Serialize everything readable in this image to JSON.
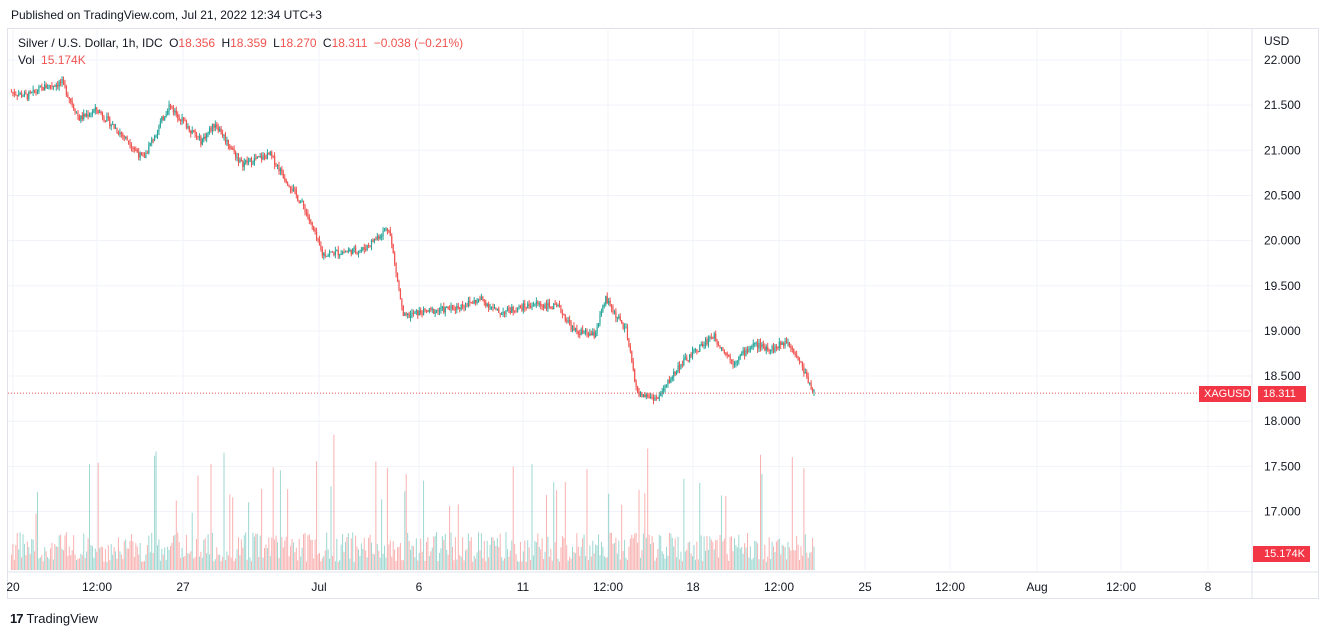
{
  "header": {
    "published": "Published on TradingView.com, Jul 21, 2022 12:34 UTC+3"
  },
  "legend": {
    "symbol": "Silver / U.S. Dollar, 1h, IDC",
    "o_label": "O",
    "o": "18.356",
    "h_label": "H",
    "h": "18.359",
    "l_label": "L",
    "l": "18.270",
    "c_label": "C",
    "c": "18.311",
    "change": "−0.038 (−0.21%)",
    "vol_label": "Vol",
    "vol": "15.174K"
  },
  "price_axis": {
    "currency": "USD",
    "ticks": [
      "22.000",
      "21.500",
      "21.000",
      "20.500",
      "20.000",
      "19.500",
      "19.000",
      "18.500",
      "18.000",
      "17.500",
      "17.000"
    ]
  },
  "time_axis": {
    "ticks": [
      "20",
      "12:00",
      "27",
      "Jul",
      "6",
      "11",
      "12:00",
      "18",
      "12:00",
      "25",
      "12:00",
      "Aug",
      "12:00",
      "8"
    ]
  },
  "tags": {
    "symbol_tag": "XAGUSD",
    "last_price": "18.311",
    "vol_tag": "15.174K"
  },
  "colors": {
    "up": "#26a69a",
    "down": "#ef5350",
    "grid": "#f0f3fa"
  },
  "footer": {
    "brand": "TradingView"
  },
  "chart_data": {
    "type": "candlestick",
    "interval": "1h",
    "ylim": [
      17.0,
      22.0
    ],
    "last_close": 18.311,
    "close_path": [
      {
        "x": "Jun 20",
        "y": 21.65
      },
      {
        "x": "Jun 21 00:00",
        "y": 21.6
      },
      {
        "x": "Jun 21 12:00",
        "y": 21.7
      },
      {
        "x": "Jun 22",
        "y": 21.75
      },
      {
        "x": "Jun 22 12:00",
        "y": 21.35
      },
      {
        "x": "Jun 23",
        "y": 21.45
      },
      {
        "x": "Jun 24",
        "y": 21.1
      },
      {
        "x": "Jun 24 12:00",
        "y": 20.9
      },
      {
        "x": "Jun 27",
        "y": 21.5
      },
      {
        "x": "Jun 28",
        "y": 21.1
      },
      {
        "x": "Jun 28 12:00",
        "y": 21.3
      },
      {
        "x": "Jun 29",
        "y": 20.85
      },
      {
        "x": "Jun 30",
        "y": 20.95
      },
      {
        "x": "Jun 30 12:00",
        "y": 20.7
      },
      {
        "x": "Jul 1",
        "y": 20.35
      },
      {
        "x": "Jul 1 12:00",
        "y": 19.85
      },
      {
        "x": "Jul 4",
        "y": 19.9
      },
      {
        "x": "Jul 5",
        "y": 20.15
      },
      {
        "x": "Jul 5 12:00",
        "y": 19.15
      },
      {
        "x": "Jul 6",
        "y": 19.2
      },
      {
        "x": "Jul 7",
        "y": 19.25
      },
      {
        "x": "Jul 8",
        "y": 19.35
      },
      {
        "x": "Jul 8 12:00",
        "y": 19.2
      },
      {
        "x": "Jul 11",
        "y": 19.3
      },
      {
        "x": "Jul 12",
        "y": 19.25
      },
      {
        "x": "Jul 12 12:00",
        "y": 19.0
      },
      {
        "x": "Jul 13",
        "y": 18.95
      },
      {
        "x": "Jul 13 12:00",
        "y": 19.35
      },
      {
        "x": "Jul 14",
        "y": 19.0
      },
      {
        "x": "Jul 14 12:00",
        "y": 18.3
      },
      {
        "x": "Jul 15",
        "y": 18.25
      },
      {
        "x": "Jul 15 12:00",
        "y": 18.6
      },
      {
        "x": "Jul 18",
        "y": 18.95
      },
      {
        "x": "Jul 18 12:00",
        "y": 18.65
      },
      {
        "x": "Jul 19",
        "y": 18.85
      },
      {
        "x": "Jul 19 12:00",
        "y": 18.8
      },
      {
        "x": "Jul 20",
        "y": 18.9
      },
      {
        "x": "Jul 20 12:00",
        "y": 18.6
      },
      {
        "x": "Jul 21",
        "y": 18.311
      }
    ]
  }
}
